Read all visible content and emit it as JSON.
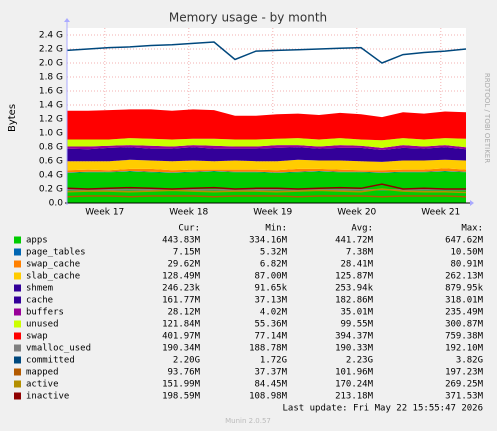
{
  "chart_data": {
    "type": "area",
    "stacked": true,
    "title": "Memory usage - by month",
    "y_label": "Bytes",
    "watermark": "RRDTOOL / TOBI OETIKER",
    "legend_headers": [
      "Cur:",
      "Min:",
      "Avg:",
      "Max:"
    ],
    "last_update": "Last update: Fri May 22 15:55:47 2026",
    "footer": "Munin 2.0.57",
    "grid": true,
    "xlim": [
      16.55,
      21.3
    ],
    "ylim": [
      0,
      2.5
    ],
    "xticks": [
      {
        "value": 17,
        "label": "Week 17"
      },
      {
        "value": 18,
        "label": "Week 18"
      },
      {
        "value": 19,
        "label": "Week 19"
      },
      {
        "value": 20,
        "label": "Week 20"
      },
      {
        "value": 21,
        "label": "Week 21"
      }
    ],
    "yticks": [
      {
        "value": 0,
        "label": "0.0"
      },
      {
        "value": 0.2,
        "label": "0.2 G"
      },
      {
        "value": 0.4,
        "label": "0.4 G"
      },
      {
        "value": 0.6,
        "label": "0.6 G"
      },
      {
        "value": 0.8,
        "label": "0.8 G"
      },
      {
        "value": 1.0,
        "label": "1.0 G"
      },
      {
        "value": 1.2,
        "label": "1.2 G"
      },
      {
        "value": 1.4,
        "label": "1.4 G"
      },
      {
        "value": 1.6,
        "label": "1.6 G"
      },
      {
        "value": 1.8,
        "label": "1.8 G"
      },
      {
        "value": 2.0,
        "label": "2.0 G"
      },
      {
        "value": 2.2,
        "label": "2.2 G"
      },
      {
        "value": 2.4,
        "label": "2.4 G"
      }
    ],
    "x": [
      16.55,
      16.8,
      17.05,
      17.3,
      17.55,
      17.8,
      18.05,
      18.3,
      18.55,
      18.8,
      19.05,
      19.3,
      19.55,
      19.8,
      20.05,
      20.3,
      20.55,
      20.8,
      21.05,
      21.3
    ],
    "series": [
      {
        "name": "apps",
        "kind": "area",
        "color": "#00cc00",
        "stats": [
          "443.83M",
          "334.16M",
          "441.72M",
          "647.62M"
        ],
        "values": [
          0.43,
          0.44,
          0.44,
          0.45,
          0.44,
          0.43,
          0.44,
          0.45,
          0.44,
          0.44,
          0.43,
          0.44,
          0.45,
          0.44,
          0.44,
          0.43,
          0.44,
          0.44,
          0.45,
          0.44
        ]
      },
      {
        "name": "page_tables",
        "kind": "area",
        "color": "#0066b3",
        "stats": [
          "7.15M",
          "5.32M",
          "7.38M",
          "10.50M"
        ],
        "values": [
          0.007,
          0.007,
          0.007,
          0.007,
          0.007,
          0.007,
          0.007,
          0.007,
          0.007,
          0.007,
          0.007,
          0.007,
          0.007,
          0.007,
          0.007,
          0.007,
          0.007,
          0.007,
          0.007,
          0.007
        ]
      },
      {
        "name": "swap_cache",
        "kind": "area",
        "color": "#ff8000",
        "stats": [
          "29.62M",
          "6.82M",
          "28.41M",
          "80.91M"
        ],
        "values": [
          0.03,
          0.03,
          0.02,
          0.03,
          0.04,
          0.03,
          0.03,
          0.02,
          0.03,
          0.03,
          0.03,
          0.04,
          0.03,
          0.03,
          0.02,
          0.03,
          0.03,
          0.03,
          0.04,
          0.03
        ]
      },
      {
        "name": "slab_cache",
        "kind": "area",
        "color": "#ffcc00",
        "stats": [
          "128.49M",
          "87.00M",
          "125.87M",
          "262.13M"
        ],
        "values": [
          0.13,
          0.12,
          0.13,
          0.13,
          0.12,
          0.13,
          0.13,
          0.12,
          0.13,
          0.12,
          0.13,
          0.13,
          0.12,
          0.13,
          0.13,
          0.12,
          0.13,
          0.13,
          0.12,
          0.13
        ]
      },
      {
        "name": "shmem",
        "kind": "area",
        "color": "#330099",
        "stats": [
          "246.23k",
          "91.65k",
          "253.94k",
          "879.95k"
        ],
        "values": [
          0.0002,
          0.0002,
          0.0002,
          0.0002,
          0.0002,
          0.0002,
          0.0002,
          0.0002,
          0.0002,
          0.0002,
          0.0002,
          0.0002,
          0.0002,
          0.0002,
          0.0002,
          0.0002,
          0.0002,
          0.0002,
          0.0002,
          0.0002
        ]
      },
      {
        "name": "cache",
        "kind": "area",
        "color": "#330099",
        "stats": [
          "161.77M",
          "37.13M",
          "182.86M",
          "318.01M"
        ],
        "values": [
          0.18,
          0.17,
          0.19,
          0.18,
          0.17,
          0.18,
          0.19,
          0.18,
          0.17,
          0.18,
          0.19,
          0.18,
          0.17,
          0.18,
          0.19,
          0.17,
          0.18,
          0.17,
          0.18,
          0.16
        ]
      },
      {
        "name": "buffers",
        "kind": "area",
        "color": "#990099",
        "stats": [
          "28.12M",
          "4.02M",
          "35.01M",
          "235.49M"
        ],
        "values": [
          0.03,
          0.04,
          0.03,
          0.03,
          0.04,
          0.03,
          0.03,
          0.04,
          0.03,
          0.03,
          0.04,
          0.03,
          0.03,
          0.04,
          0.03,
          0.03,
          0.04,
          0.03,
          0.03,
          0.03
        ]
      },
      {
        "name": "unused",
        "kind": "area",
        "color": "#ccff00",
        "stats": [
          "121.84M",
          "55.36M",
          "99.55M",
          "300.87M"
        ],
        "values": [
          0.1,
          0.1,
          0.09,
          0.1,
          0.1,
          0.1,
          0.09,
          0.1,
          0.1,
          0.1,
          0.09,
          0.1,
          0.1,
          0.1,
          0.09,
          0.11,
          0.1,
          0.1,
          0.1,
          0.12
        ]
      },
      {
        "name": "swap",
        "kind": "area",
        "color": "#ff0000",
        "stats": [
          "401.97M",
          "77.14M",
          "394.37M",
          "759.38M"
        ],
        "values": [
          0.41,
          0.41,
          0.42,
          0.41,
          0.42,
          0.41,
          0.42,
          0.41,
          0.34,
          0.34,
          0.35,
          0.35,
          0.35,
          0.36,
          0.36,
          0.33,
          0.37,
          0.37,
          0.38,
          0.38
        ]
      },
      {
        "name": "vmalloc_used",
        "kind": "line",
        "color": "#808080",
        "stats": [
          "190.34M",
          "188.78M",
          "190.33M",
          "192.10M"
        ],
        "values": [
          0.19,
          0.19,
          0.19,
          0.19,
          0.19,
          0.19,
          0.19,
          0.19,
          0.19,
          0.19,
          0.19,
          0.19,
          0.19,
          0.19,
          0.19,
          0.19,
          0.19,
          0.19,
          0.19,
          0.19
        ]
      },
      {
        "name": "committed",
        "kind": "line",
        "color": "#00487d",
        "stats": [
          "2.20G",
          "1.72G",
          "2.23G",
          "3.82G"
        ],
        "values": [
          2.18,
          2.2,
          2.22,
          2.23,
          2.25,
          2.26,
          2.28,
          2.3,
          2.05,
          2.17,
          2.18,
          2.19,
          2.2,
          2.21,
          2.22,
          2.0,
          2.12,
          2.15,
          2.17,
          2.2
        ]
      },
      {
        "name": "mapped",
        "kind": "line",
        "color": "#b35a00",
        "stats": [
          "93.76M",
          "37.37M",
          "101.96M",
          "197.23M"
        ],
        "values": [
          0.09,
          0.1,
          0.1,
          0.09,
          0.1,
          0.1,
          0.1,
          0.09,
          0.1,
          0.1,
          0.1,
          0.09,
          0.1,
          0.1,
          0.1,
          0.09,
          0.1,
          0.1,
          0.1,
          0.09
        ]
      },
      {
        "name": "active",
        "kind": "line",
        "color": "#b38f00",
        "stats": [
          "151.99M",
          "84.45M",
          "170.24M",
          "269.25M"
        ],
        "values": [
          0.16,
          0.17,
          0.17,
          0.16,
          0.17,
          0.18,
          0.17,
          0.16,
          0.17,
          0.17,
          0.16,
          0.17,
          0.18,
          0.17,
          0.16,
          0.2,
          0.17,
          0.16,
          0.16,
          0.15
        ]
      },
      {
        "name": "inactive",
        "kind": "line",
        "color": "#8f0000",
        "stats": [
          "198.59M",
          "108.98M",
          "213.18M",
          "371.53M"
        ],
        "values": [
          0.21,
          0.2,
          0.21,
          0.22,
          0.21,
          0.2,
          0.21,
          0.22,
          0.2,
          0.21,
          0.21,
          0.2,
          0.21,
          0.22,
          0.21,
          0.27,
          0.2,
          0.21,
          0.2,
          0.2
        ]
      }
    ]
  }
}
